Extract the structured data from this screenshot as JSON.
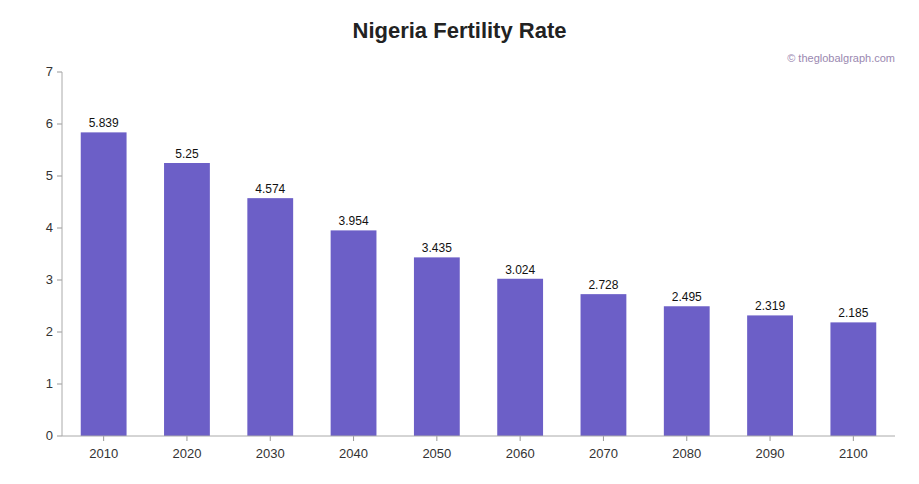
{
  "chart_data": {
    "type": "bar",
    "title": "Nigeria Fertility Rate",
    "categories": [
      2010,
      2020,
      2030,
      2040,
      2050,
      2060,
      2070,
      2080,
      2090,
      2100
    ],
    "values": [
      5.839,
      5.25,
      4.574,
      3.954,
      3.435,
      3.024,
      2.728,
      2.495,
      2.319,
      2.185
    ],
    "color": "#6c5fc7",
    "ylim": [
      0,
      7
    ],
    "yticks": [
      0,
      1,
      2,
      3,
      4,
      5,
      6,
      7
    ],
    "grid": false,
    "data_labels": true,
    "annotations": [
      "© theglobalgraph.com"
    ]
  }
}
